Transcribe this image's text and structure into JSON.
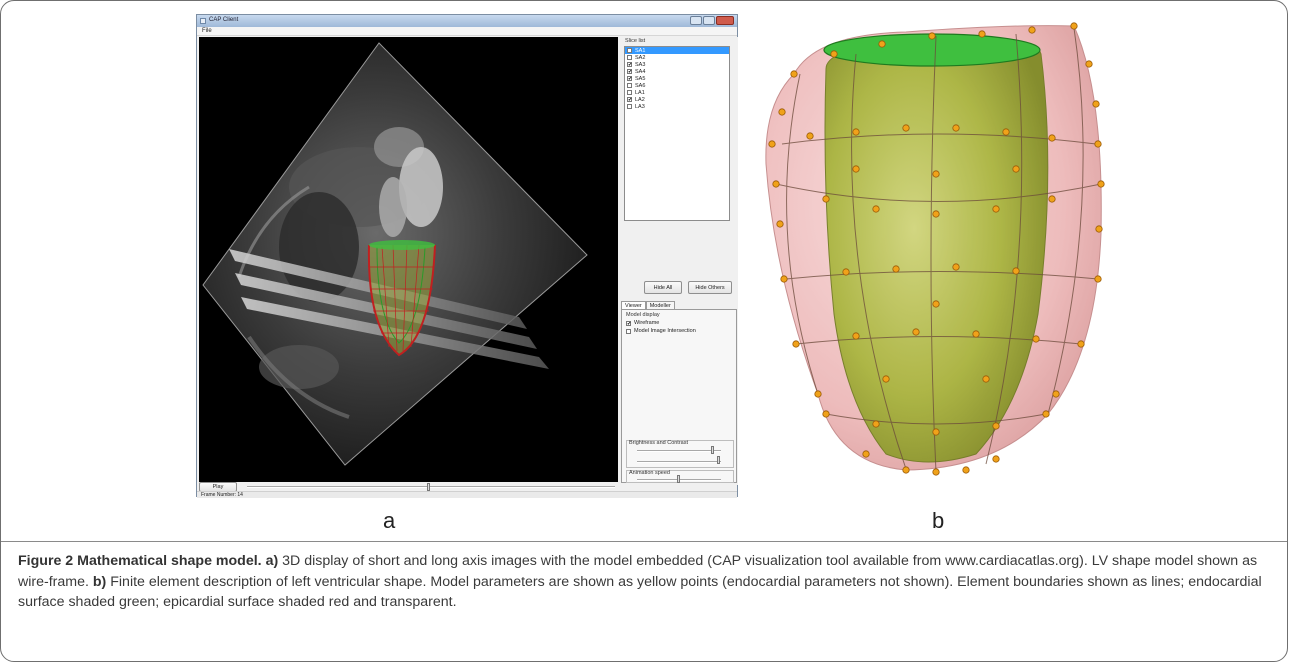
{
  "app": {
    "window_title": "CAP Client",
    "menu_file": "File",
    "slice_list_label": "Slice list",
    "slices": [
      {
        "name": "SA1",
        "checked": false,
        "selected": true
      },
      {
        "name": "SA2",
        "checked": false,
        "selected": false
      },
      {
        "name": "SA3",
        "checked": true,
        "selected": false
      },
      {
        "name": "SA4",
        "checked": true,
        "selected": false
      },
      {
        "name": "SA5",
        "checked": true,
        "selected": false
      },
      {
        "name": "SA6",
        "checked": false,
        "selected": false
      },
      {
        "name": "LA1",
        "checked": false,
        "selected": false
      },
      {
        "name": "LA2",
        "checked": true,
        "selected": false
      },
      {
        "name": "LA3",
        "checked": false,
        "selected": false
      }
    ],
    "hide_all": "Hide All",
    "hide_others": "Hide Others",
    "tab_viewer": "Viewer",
    "tab_modeller": "Modeller",
    "model_display_label": "Model display",
    "wireframe_label": "Wireframe",
    "wireframe_checked": true,
    "intersection_label": "Model Image Intersection",
    "intersection_checked": false,
    "brightness_label": "Brightness and Contrast",
    "animation_label": "Animation speed",
    "play_label": "Play",
    "frame_status": "Frame Number: 14"
  },
  "panel_labels": {
    "a": "a",
    "b": "b"
  },
  "caption": {
    "title": "Figure 2 Mathematical shape model.",
    "a_marker": "a)",
    "a_text": " 3D display of short and long axis images with the model embedded (CAP visualization tool available from www.cardiacatlas.org). LV shape model shown as wire-frame. ",
    "b_marker": "b)",
    "b_text": " Finite element description of left ventricular shape. Model parameters are shown as yellow points (endocardial parameters not shown). Element boundaries shown as lines; endocardial surface shaded green; epicardial surface shaded red and transparent."
  },
  "colors": {
    "endocardium": "#a8b53c",
    "epicardium": "#e8a6a6",
    "base_ring": "#3fbf3f",
    "parameter_points": "#f0a21a",
    "selection": "#3399ff"
  }
}
